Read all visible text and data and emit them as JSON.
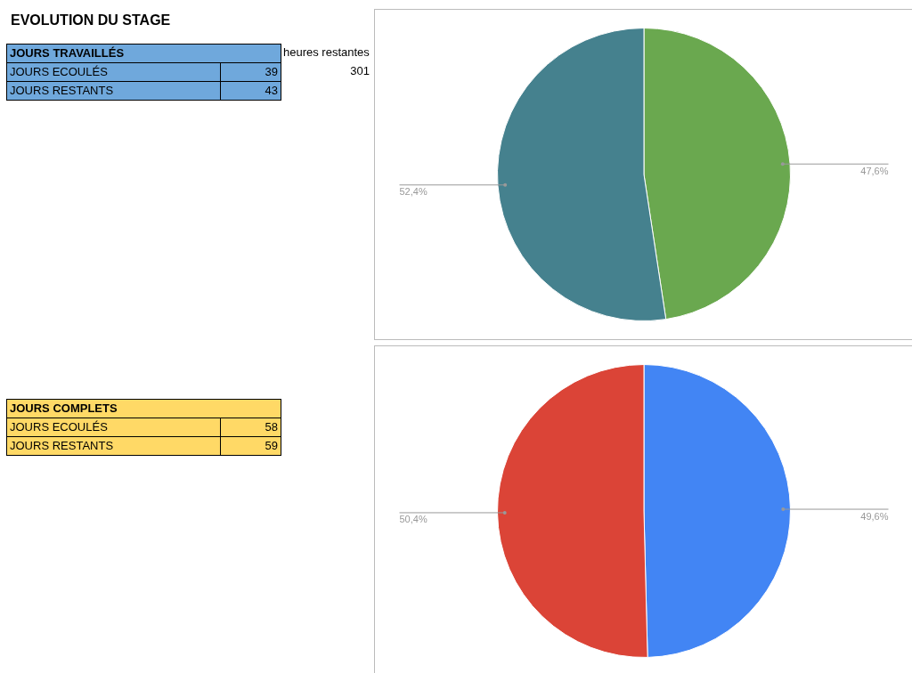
{
  "chart_data": [
    {
      "type": "other",
      "title": "EVOLUTION DU STAGE",
      "annotations": [
        "JOURS TRAVAILLÉS",
        "heures restantes",
        "JOURS ECOULÉS",
        "39",
        "301",
        "JOURS RESTANTS",
        "43",
        "JOURS COMPLETS",
        "JOURS ECOULÉS",
        "58",
        "JOURS RESTANTS",
        "59"
      ]
    },
    {
      "type": "pie",
      "categories": [
        null,
        null
      ],
      "values": [
        47.6,
        52.4
      ],
      "colors": [
        "#6aa84f",
        "#45818e"
      ],
      "value_labels": [
        "47,6%",
        "52,4%"
      ],
      "legend": false
    },
    {
      "type": "pie",
      "categories": [
        null,
        null
      ],
      "values": [
        49.6,
        50.4
      ],
      "colors": [
        "#4285f4",
        "#db4437"
      ],
      "value_labels": [
        "49,6%",
        "50,4%"
      ],
      "legend": false
    }
  ]
}
